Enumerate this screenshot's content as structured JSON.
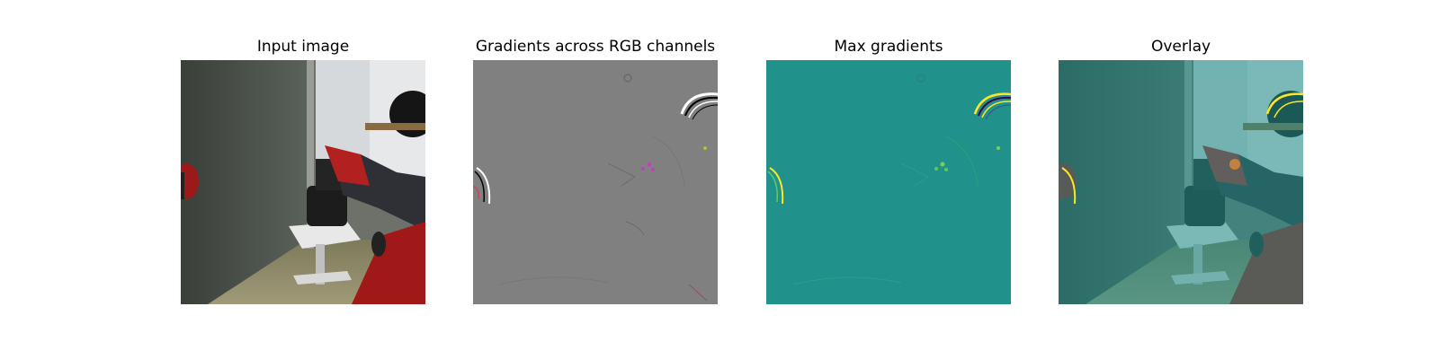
{
  "panels": [
    {
      "title": "Input image"
    },
    {
      "title": "Gradients across RGB channels"
    },
    {
      "title": "Max gradients"
    },
    {
      "title": "Overlay"
    }
  ],
  "colors": {
    "gradient_background": "#808080",
    "max_gradient_background": "#21918c",
    "overlay_tint": "#21918c",
    "robot_red": "#b22020",
    "robot_dark": "#2e3036",
    "highlight_yellow": "#fde725",
    "highlight_magenta": "#c040c0"
  }
}
